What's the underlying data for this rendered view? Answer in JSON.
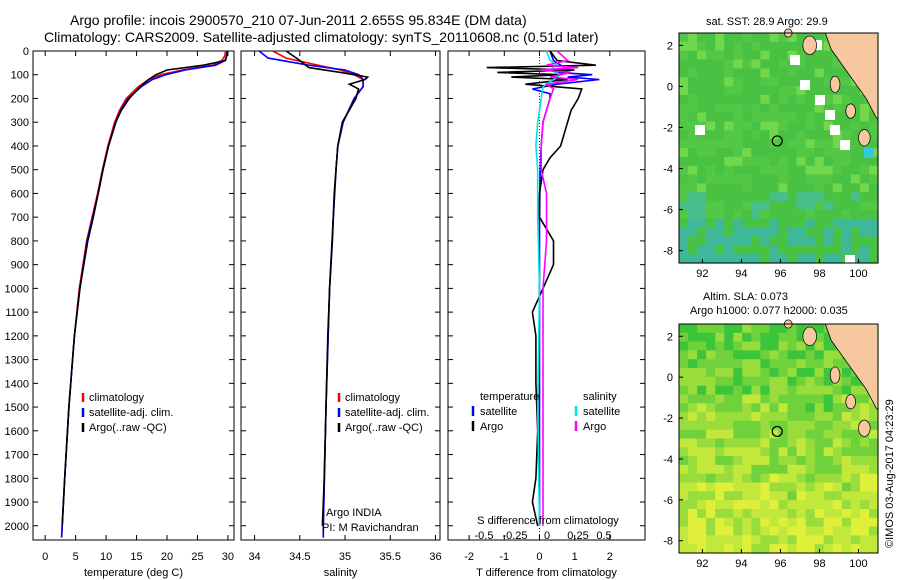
{
  "title": {
    "line1": "Argo profile: incois 2900570_210 07-Jun-2011 2.655S 95.834E (DM data)",
    "line2": "Climatology: CARS2009. Satellite-adjusted climatology: synTS_20110608.nc (0.51d later)"
  },
  "footer": "©IMOS 03-Aug-2017 04:23:29",
  "colors": {
    "climatology": "#ff0000",
    "satellite": "#0000ff",
    "argo": "#000000",
    "satellite_salinity": "#00e5e5",
    "argo_salinity": "#ff00ff",
    "land": "#f7c8a0"
  },
  "chart_data": [
    {
      "type": "line",
      "xlabel": "temperature (deg C)",
      "ylabel": "",
      "xlim": [
        -2,
        31
      ],
      "ylim": [
        2060,
        0
      ],
      "xticks": [
        0,
        5,
        10,
        15,
        20,
        25,
        30
      ],
      "yticks": [
        0,
        100,
        200,
        300,
        400,
        500,
        600,
        700,
        800,
        900,
        1000,
        1100,
        1200,
        1300,
        1400,
        1500,
        1600,
        1700,
        1800,
        1900,
        2000
      ],
      "legend": [
        "climatology",
        "satellite-adj. clim.",
        "Argo(..raw -QC)"
      ],
      "series": [
        {
          "name": "climatology",
          "color": "#ff0000",
          "depth": [
            0,
            20,
            40,
            60,
            80,
            100,
            120,
            150,
            200,
            250,
            300,
            400,
            500,
            600,
            700,
            800,
            1000,
            1200,
            1500,
            1800,
            2000,
            2050
          ],
          "values": [
            29.6,
            29.5,
            29.0,
            27.5,
            22.5,
            19.0,
            17.0,
            15.3,
            13.3,
            12.2,
            11.4,
            10.3,
            9.4,
            8.6,
            7.7,
            6.8,
            5.6,
            4.8,
            3.9,
            3.2,
            2.8,
            2.7
          ]
        },
        {
          "name": "satellite-adj. clim.",
          "color": "#0000ff",
          "depth": [
            0,
            20,
            40,
            60,
            80,
            100,
            120,
            150,
            200,
            250,
            300,
            400,
            500,
            600,
            700,
            800,
            1000,
            1200,
            1500,
            1800,
            2000,
            2050
          ],
          "values": [
            29.9,
            29.8,
            29.5,
            28.0,
            23.0,
            19.8,
            17.6,
            15.8,
            13.6,
            12.4,
            11.6,
            10.4,
            9.5,
            8.7,
            7.8,
            6.9,
            5.7,
            4.8,
            3.9,
            3.2,
            2.8,
            2.7
          ]
        },
        {
          "name": "Argo(..raw -QC)",
          "color": "#000000",
          "depth": [
            0,
            20,
            40,
            60,
            80,
            100,
            120,
            150,
            200,
            250,
            300,
            400,
            500,
            600,
            700,
            800,
            1000,
            1200,
            1500,
            1800,
            2000
          ],
          "values": [
            29.9,
            29.8,
            29.6,
            26.0,
            20.0,
            18.2,
            17.0,
            15.6,
            13.8,
            12.5,
            11.6,
            10.4,
            9.5,
            8.7,
            7.9,
            7.0,
            5.7,
            4.8,
            3.9,
            3.2,
            2.8
          ]
        }
      ]
    },
    {
      "type": "line",
      "xlabel": "salinity",
      "ylabel": "",
      "xlim": [
        33.85,
        36.05
      ],
      "ylim": [
        2060,
        0
      ],
      "xticks": [
        34,
        34.5,
        35,
        35.5,
        36
      ],
      "legend": [
        "climatology",
        "satellite-adj. clim.",
        "Argo(..raw -QC)"
      ],
      "annotation": [
        "Argo INDIA",
        "PI: M Ravichandran"
      ],
      "series": [
        {
          "name": "climatology",
          "color": "#ff0000",
          "depth": [
            0,
            30,
            60,
            80,
            100,
            120,
            150,
            200,
            300,
            400,
            500,
            700,
            1000,
            1500,
            2000,
            2050
          ],
          "values": [
            34.2,
            34.35,
            34.7,
            34.95,
            35.1,
            35.2,
            35.2,
            35.1,
            34.98,
            34.92,
            34.9,
            34.87,
            34.83,
            34.79,
            34.76,
            34.76
          ]
        },
        {
          "name": "satellite-adj. clim.",
          "color": "#0000ff",
          "depth": [
            0,
            30,
            60,
            80,
            100,
            120,
            150,
            200,
            300,
            400,
            500,
            700,
            1000,
            1500,
            2000,
            2050
          ],
          "values": [
            34.05,
            34.15,
            34.6,
            35.0,
            35.15,
            35.2,
            35.2,
            35.1,
            34.98,
            34.92,
            34.9,
            34.87,
            34.83,
            34.79,
            34.76,
            34.76
          ]
        },
        {
          "name": "Argo(..raw -QC)",
          "color": "#000000",
          "depth": [
            0,
            40,
            70,
            90,
            100,
            110,
            120,
            140,
            160,
            200,
            300,
            400,
            500,
            600,
            700,
            800,
            1000,
            1200,
            1500,
            1800,
            2000
          ],
          "values": [
            34.35,
            34.5,
            34.6,
            34.95,
            35.1,
            35.25,
            35.22,
            35.05,
            35.15,
            35.12,
            34.97,
            34.92,
            34.9,
            34.88,
            34.87,
            34.86,
            34.83,
            34.81,
            34.79,
            34.77,
            34.75
          ]
        }
      ]
    },
    {
      "type": "line",
      "xlabel": "T difference from climatology",
      "xlabel2": "S difference from climatology",
      "ylabel": "",
      "xlim": [
        -2.6,
        3.0
      ],
      "ylim": [
        2060,
        0
      ],
      "xticks": [
        -2,
        -1,
        0,
        1,
        2
      ],
      "xticks_s": [
        "-0.5",
        "-0.25",
        "0",
        "0.25",
        "0.5"
      ],
      "legend_headers": [
        "temperature",
        "salinity"
      ],
      "legend": [
        "satellite",
        "Argo",
        "satellite",
        "Argo"
      ],
      "series": [
        {
          "name": "satellite",
          "color": "#0000ff",
          "depth": [
            0,
            40,
            60,
            80,
            90,
            100,
            110,
            120,
            140,
            160,
            180,
            200,
            250,
            300,
            400,
            500,
            700,
            1000,
            1500,
            2000
          ],
          "values": [
            0.3,
            0.4,
            0.6,
            0.9,
            0.5,
            1.5,
            0.8,
            1.7,
            0.5,
            -0.2,
            0.3,
            0.3,
            0.2,
            0.1,
            0.05,
            0.02,
            0.0,
            0.0,
            0.0,
            0.0
          ]
        },
        {
          "name": "Argo",
          "color": "#000000",
          "depth": [
            0,
            40,
            60,
            70,
            80,
            90,
            100,
            110,
            120,
            140,
            160,
            200,
            250,
            300,
            400,
            450,
            500,
            600,
            700,
            800,
            900,
            1000,
            1100,
            1200,
            1400,
            1600,
            1800,
            1900,
            2000
          ],
          "values": [
            0.3,
            0.5,
            1.6,
            -1.5,
            1.0,
            -1.2,
            0.6,
            -0.8,
            0.8,
            -0.4,
            1.2,
            1.1,
            0.9,
            0.8,
            0.6,
            0.3,
            0.1,
            0.0,
            0.0,
            0.4,
            0.4,
            0.1,
            -0.2,
            -0.1,
            -0.1,
            -0.05,
            -0.1,
            -0.2,
            -0.05
          ]
        },
        {
          "name": "satellite",
          "color": "#00e5e5",
          "depth": [
            0,
            40,
            60,
            80,
            100,
            120,
            150,
            200,
            300,
            400,
            500,
            700,
            1000,
            1500,
            2000
          ],
          "values": [
            0.2,
            0.3,
            0.5,
            0.3,
            0.6,
            0.4,
            0.1,
            0.05,
            -0.05,
            -0.1,
            -0.05,
            -0.05,
            0.0,
            -0.05,
            0.0
          ]
        },
        {
          "name": "Argo",
          "color": "#ff00ff",
          "depth": [
            0,
            40,
            60,
            70,
            80,
            90,
            100,
            110,
            120,
            140,
            160,
            200,
            300,
            400,
            500,
            600,
            800,
            1000,
            1500,
            2000
          ],
          "values": [
            0.5,
            0.8,
            0.2,
            1.1,
            0.0,
            0.9,
            0.6,
            0.3,
            1.1,
            0.2,
            0.4,
            0.3,
            0.1,
            0.05,
            0.05,
            0.2,
            0.2,
            0.1,
            0.1,
            0.1
          ]
        }
      ]
    },
    {
      "type": "heatmap",
      "title": "sat. SST: 28.9 Argo: 29.9",
      "xticks": [
        92,
        94,
        96,
        98,
        100
      ],
      "yticks": [
        2,
        0,
        -2,
        -4,
        -6,
        -8
      ],
      "xlim": [
        90.8,
        101.0
      ],
      "ylim": [
        -8.6,
        2.6
      ],
      "marker": {
        "lon": 95.834,
        "lat": -2.655
      }
    },
    {
      "type": "heatmap",
      "title": "Altim. SLA: 0.073",
      "title2": "Argo h1000: 0.077 h2000: 0.035",
      "xticks": [
        92,
        94,
        96,
        98,
        100
      ],
      "yticks": [
        2,
        0,
        -2,
        -4,
        -6,
        -8
      ],
      "xlim": [
        90.8,
        101.0
      ],
      "ylim": [
        -8.6,
        2.6
      ],
      "marker": {
        "lon": 95.834,
        "lat": -2.655
      }
    }
  ]
}
